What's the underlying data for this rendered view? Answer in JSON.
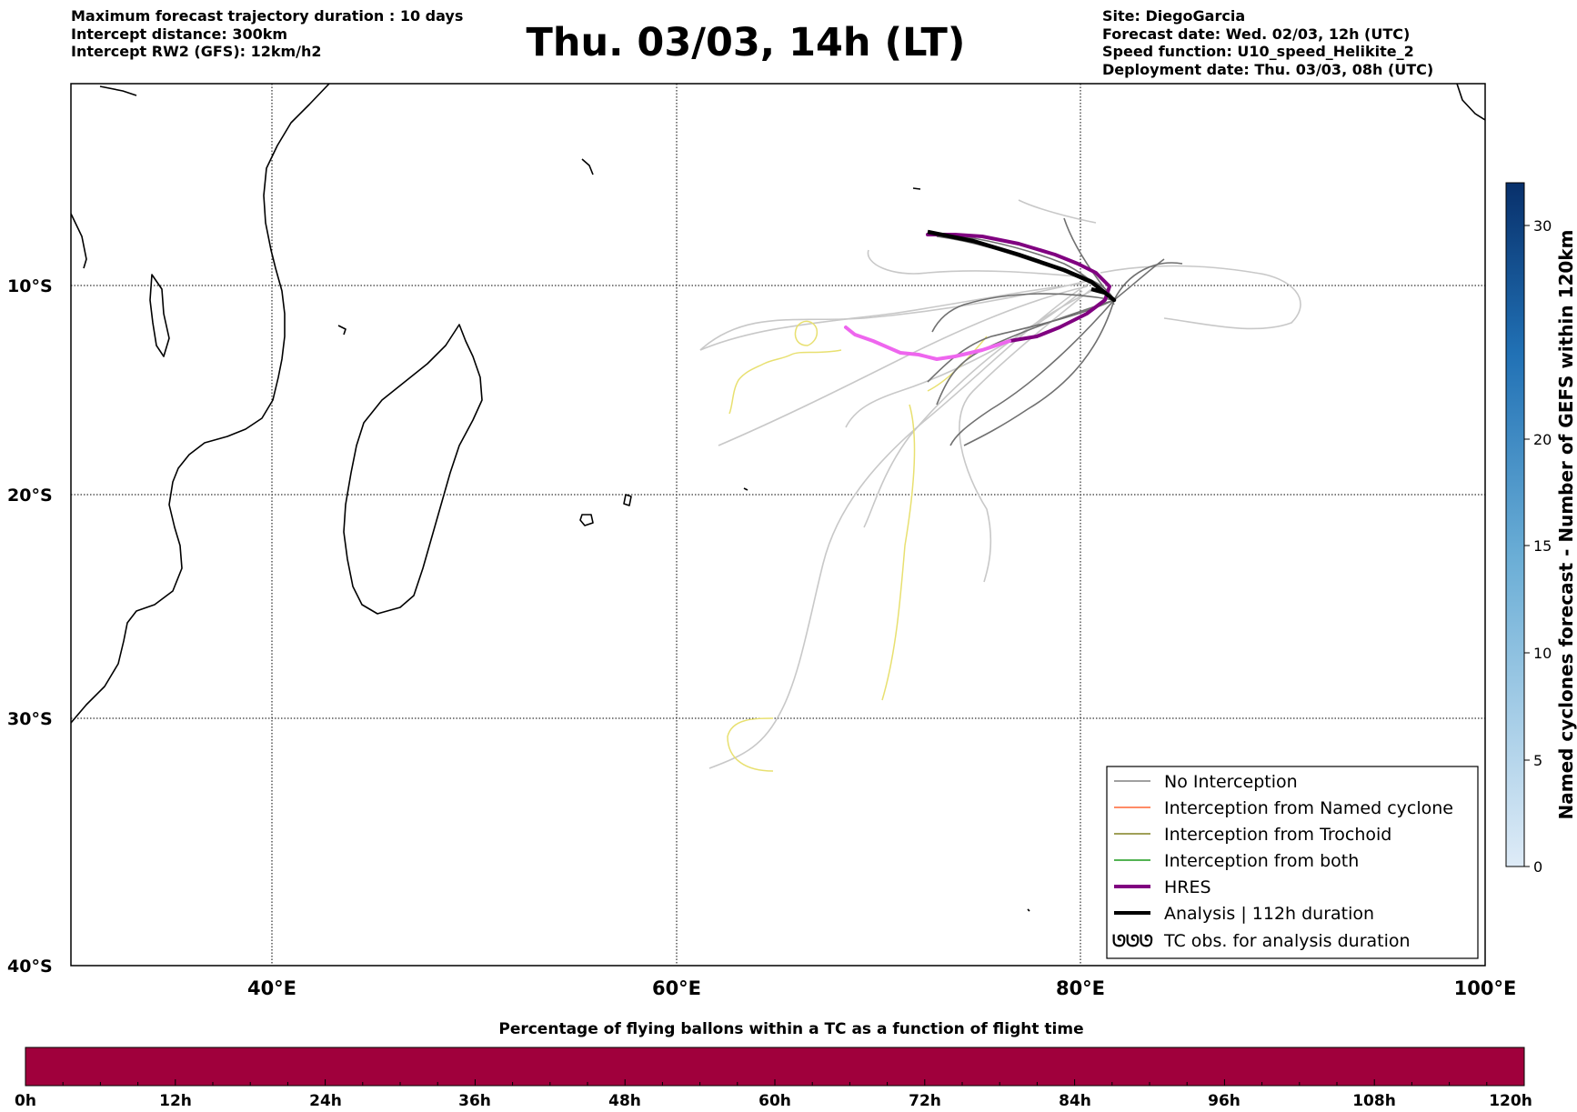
{
  "header": {
    "left_lines": [
      "Maximum forecast trajectory duration : 10 days",
      "Intercept distance: 300km",
      "Intercept RW2 (GFS):  12km/h2"
    ],
    "title": "Thu. 03/03, 14h (LT)",
    "right_lines": [
      "Site: DiegoGarcia",
      "Forecast date: Wed. 02/03, 12h (UTC)",
      "Speed function: U10_speed_Helikite_2",
      "Deployment date: Thu. 03/03, 08h (UTC)"
    ]
  },
  "map": {
    "lat_labels": [
      "10°S",
      "20°S",
      "30°S",
      "40°S"
    ],
    "lon_labels": [
      "40°E",
      "60°E",
      "80°E",
      "100°E"
    ]
  },
  "legend": {
    "items": [
      {
        "label": "No Interception",
        "color": "#808080"
      },
      {
        "label": "Interception from Named cyclone",
        "color": "#ff6633"
      },
      {
        "label": "Interception from Trochoid",
        "color": "#808020"
      },
      {
        "label": "Interception from both",
        "color": "#1a9a1a"
      },
      {
        "label": "HRES",
        "color": "#800080"
      },
      {
        "label": "Analysis | 112h duration",
        "color": "#000000"
      },
      {
        "label": "TC obs. for analysis duration",
        "color": "#000000"
      }
    ],
    "tc_symbol": "ᘎᘎᘎ"
  },
  "colorbar": {
    "label": "Named cyclones forecast - Number of GEFS within 120km",
    "ticks": [
      "0",
      "5",
      "10",
      "15",
      "20",
      "30"
    ],
    "color_low": "#deebf7",
    "color_high": "#08306b"
  },
  "flight_bar": {
    "title": "Percentage of flying ballons within a TC as a function of flight time",
    "ticks": [
      "0h",
      "12h",
      "24h",
      "36h",
      "48h",
      "60h",
      "72h",
      "84h",
      "96h",
      "108h",
      "120h"
    ],
    "fill_color": "#a0003c"
  },
  "colors": {
    "hres_late": "#ee66ee",
    "trochoid_light": "#e8e070",
    "gefs_light": "#c8c8c8"
  }
}
